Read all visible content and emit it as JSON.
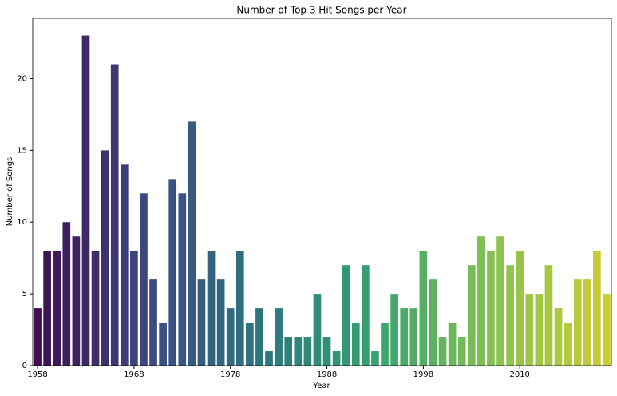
{
  "chart_data": {
    "type": "bar",
    "title": "Number of Top 3 Hit Songs per Year",
    "xlabel": "Year",
    "ylabel": "Number of Songs",
    "categories": [
      "1958",
      null,
      null,
      null,
      null,
      null,
      null,
      null,
      null,
      null,
      "1968",
      null,
      null,
      null,
      null,
      null,
      null,
      null,
      null,
      null,
      "1978",
      null,
      null,
      null,
      null,
      null,
      null,
      null,
      null,
      null,
      "1988",
      null,
      null,
      null,
      null,
      null,
      null,
      null,
      null,
      null,
      "1998",
      null,
      null,
      null,
      null,
      null,
      null,
      null,
      null,
      null,
      "2010",
      null,
      null,
      null,
      null,
      null,
      null,
      null,
      null,
      null
    ],
    "values": [
      4,
      8,
      8,
      10,
      9,
      23,
      8,
      15,
      21,
      14,
      8,
      12,
      6,
      3,
      13,
      12,
      17,
      6,
      8,
      6,
      4,
      8,
      3,
      4,
      1,
      4,
      2,
      2,
      2,
      5,
      2,
      1,
      7,
      3,
      7,
      1,
      3,
      5,
      4,
      4,
      8,
      6,
      2,
      3,
      2,
      7,
      9,
      8,
      9,
      7,
      8,
      5,
      5,
      7,
      4,
      3,
      6,
      6,
      8,
      5
    ],
    "palette": [
      "#3f0f4f",
      "#3d4a82",
      "#2b787e",
      "#38a46f",
      "#86c250",
      "#cccc33"
    ],
    "ylim": [
      0,
      24.2
    ],
    "yticks": [
      0,
      5,
      10,
      15,
      20
    ]
  }
}
